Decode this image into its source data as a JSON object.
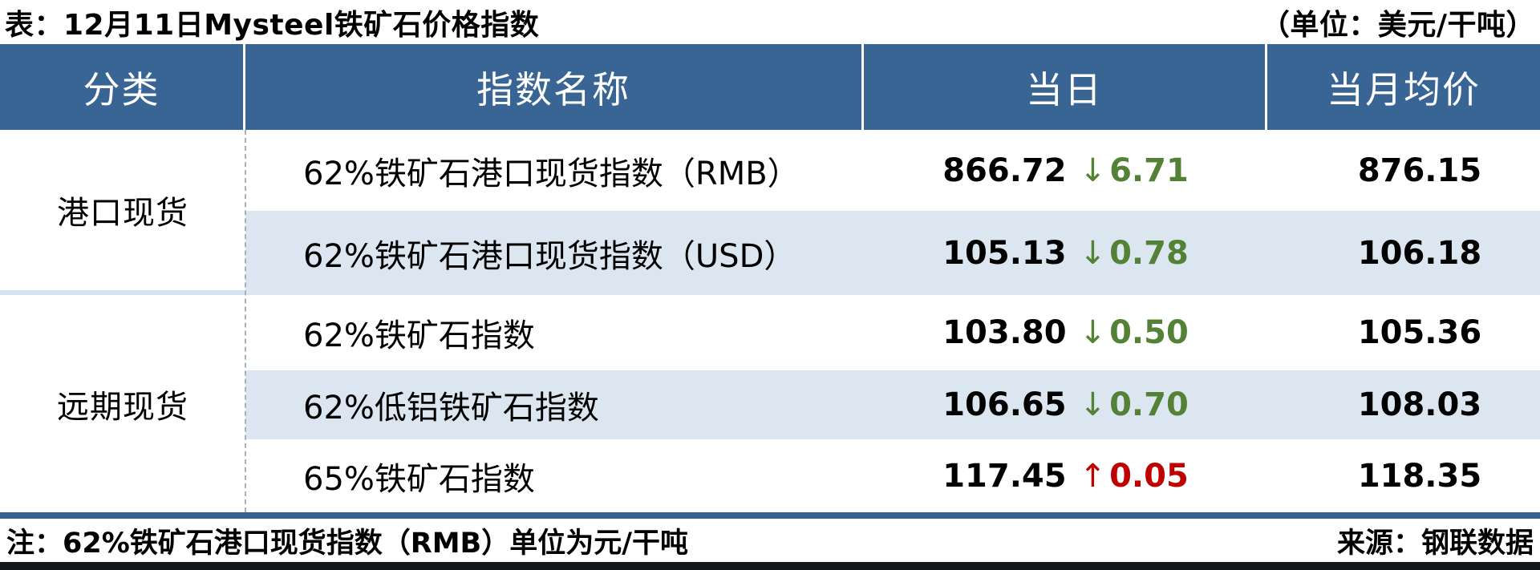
{
  "title": "表：12月11日Mysteel铁矿石价格指数",
  "unit_note": "（单位：美元/干吨）",
  "table": {
    "headers": {
      "category": "分类",
      "index_name": "指数名称",
      "daily": "当日",
      "monthly_avg": "当月均价"
    },
    "categories": [
      {
        "label": "港口现货"
      },
      {
        "label": "远期现货"
      }
    ],
    "rows": [
      {
        "name": "62%铁矿石港口现货指数（RMB）",
        "daily": "866.72",
        "arrow": "↓",
        "change": "6.71",
        "direction": "down",
        "monthly": "876.15"
      },
      {
        "name": "62%铁矿石港口现货指数（USD）",
        "daily": "105.13",
        "arrow": "↓",
        "change": "0.78",
        "direction": "down",
        "monthly": "106.18"
      },
      {
        "name": "62%铁矿石指数",
        "daily": "103.80",
        "arrow": "↓",
        "change": "0.50",
        "direction": "down",
        "monthly": "105.36"
      },
      {
        "name": "62%低铝铁矿石指数",
        "daily": "106.65",
        "arrow": "↓",
        "change": "0.70",
        "direction": "down",
        "monthly": "108.03"
      },
      {
        "name": "65%铁矿石指数",
        "daily": "117.45",
        "arrow": "↑",
        "change": "0.05",
        "direction": "up",
        "monthly": "118.35"
      }
    ]
  },
  "footer": {
    "note": "注：62%铁矿石港口现货指数（RMB）单位为元/干吨",
    "source": "来源：钢联数据"
  },
  "colors": {
    "header_bg": "#386594",
    "row_alt_bg": "#DCE6F1",
    "down_green": "#538135",
    "up_red": "#C00000",
    "divider_bar_blue": "#35618E",
    "bottom_bar_dark": "#15171A"
  }
}
